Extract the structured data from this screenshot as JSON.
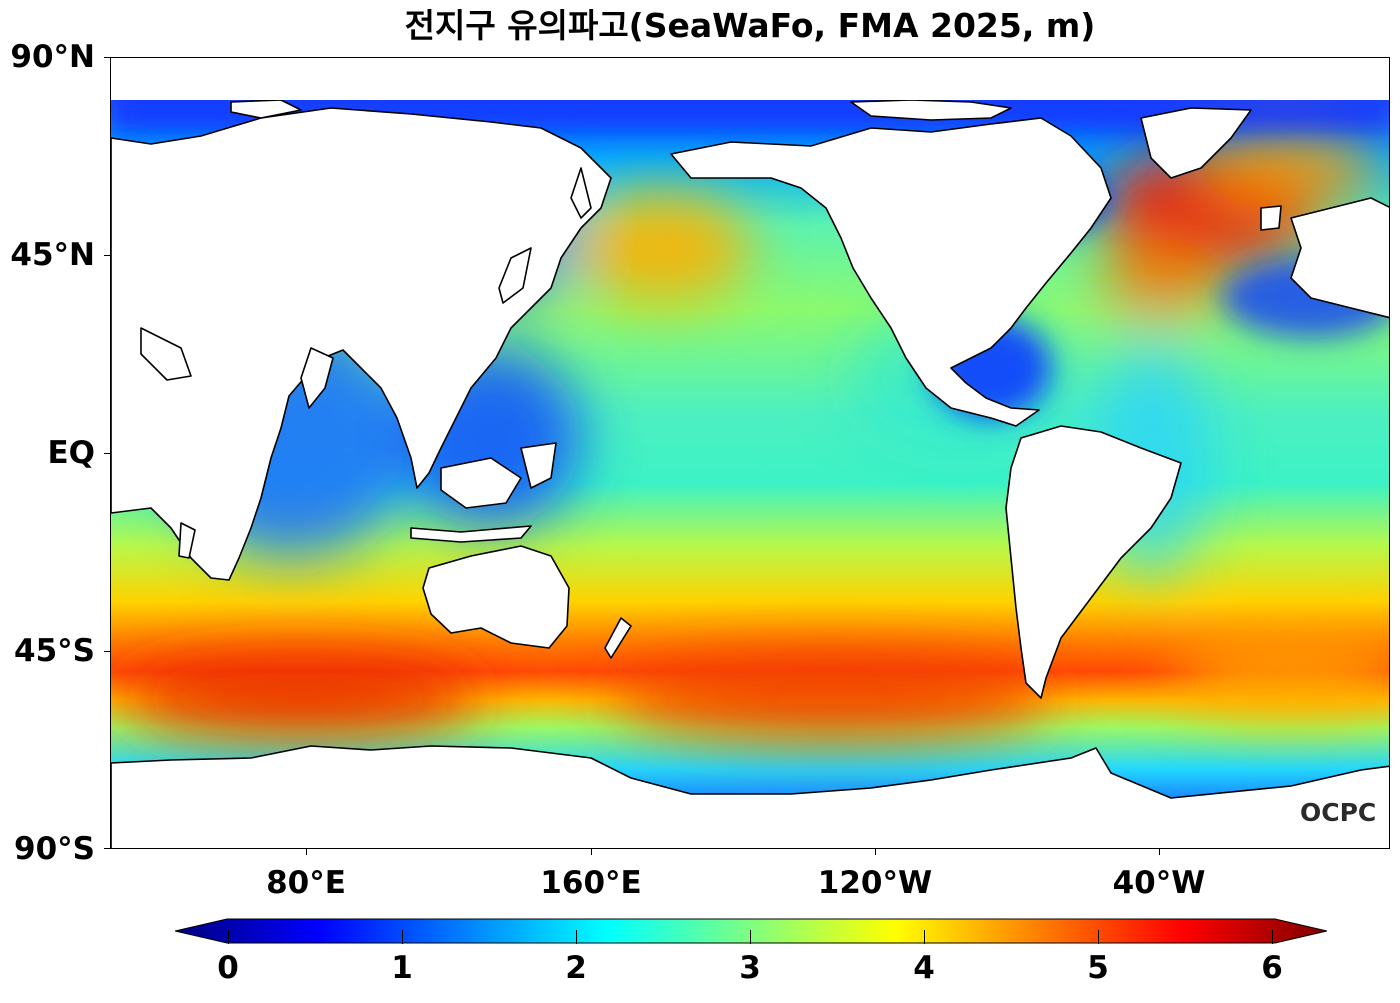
{
  "title": "전지구 유의파고(SeaWaFo, FMA 2025, m)",
  "map": {
    "lat_labels": [
      "90°N",
      "45°N",
      "EQ",
      "45°S",
      "90°S"
    ],
    "lon_labels": [
      "80°E",
      "160°E",
      "120°W",
      "40°W"
    ],
    "watermark": "OCPC"
  },
  "colorbar": {
    "labels": [
      "0",
      "1",
      "2",
      "3",
      "4",
      "5",
      "6"
    ],
    "min": 0,
    "max": 6,
    "extend": "both",
    "colormap": [
      "#00007f",
      "#0000ff",
      "#007fff",
      "#00ffff",
      "#7fff7f",
      "#ffff00",
      "#ff7f00",
      "#ff0000",
      "#7f0000"
    ]
  },
  "colors": {
    "land": "#ffffff",
    "coastline": "#000000",
    "high_wave": "#e8300c",
    "low_wave": "#0a3cff"
  }
}
